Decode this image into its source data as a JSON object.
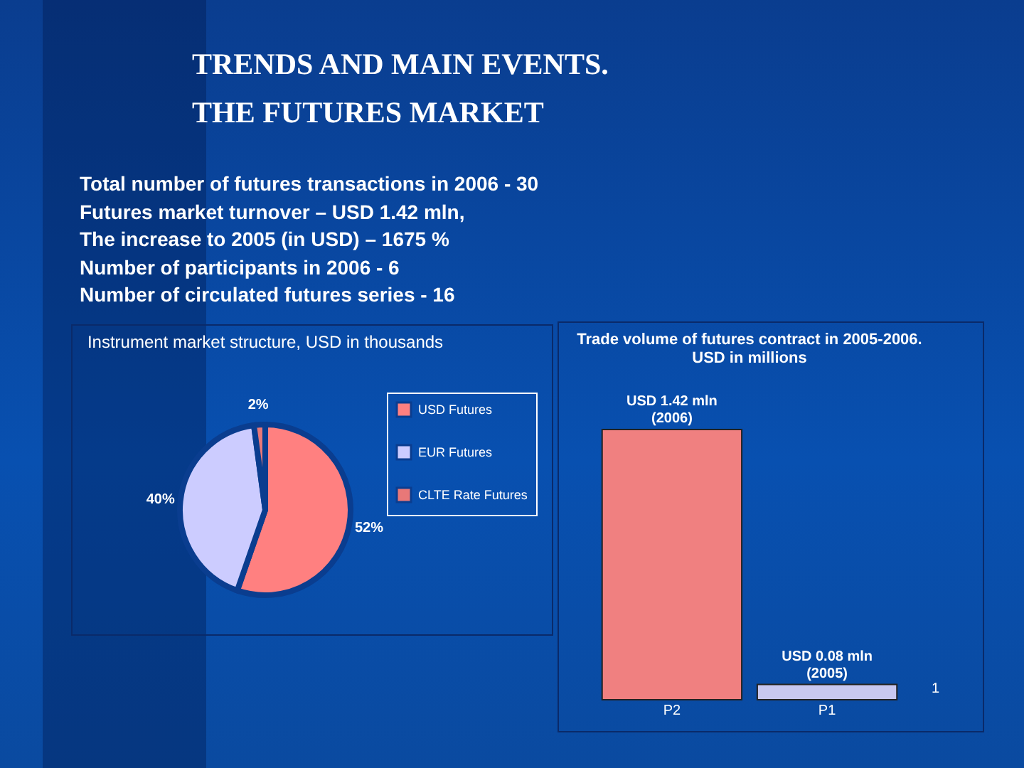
{
  "chart_data": [
    {
      "type": "other",
      "title": "TRENDS AND MAIN EVENTS.",
      "subtitle": "THE FUTURES MARKET",
      "annotations": [
        "Total number of futures transactions in 2006 - 30",
        "Futures market turnover – USD 1.42 mln,",
        "The increase to 2005 (in USD) – 1675 %",
        "Number of participants in 2006 - 6",
        "Number of circulated futures series - 16"
      ]
    },
    {
      "type": "pie",
      "title": "Instrument market structure, USD in thousands",
      "categories": [
        "USD Futures",
        "EUR Futures",
        "CLTE Rate Futures"
      ],
      "values": [
        52,
        40,
        2
      ],
      "colors": [
        "#ff8080",
        "#ccccff",
        "#e87878"
      ],
      "value_labels": [
        "52%",
        "40%",
        "2%"
      ],
      "legend": "right"
    },
    {
      "type": "bar",
      "title": "Trade volume of futures contract in 2005-2006.",
      "subtitle": "USD in millions",
      "categories": [
        "P2",
        "P1"
      ],
      "values": [
        1.42,
        0.08
      ],
      "colors": [
        "#f08080",
        "#c8c8f0"
      ],
      "value_labels": [
        "USD 1.42 mln (2006)",
        "USD 0.08 mln (2005)"
      ],
      "annotations": [
        "1"
      ]
    }
  ]
}
